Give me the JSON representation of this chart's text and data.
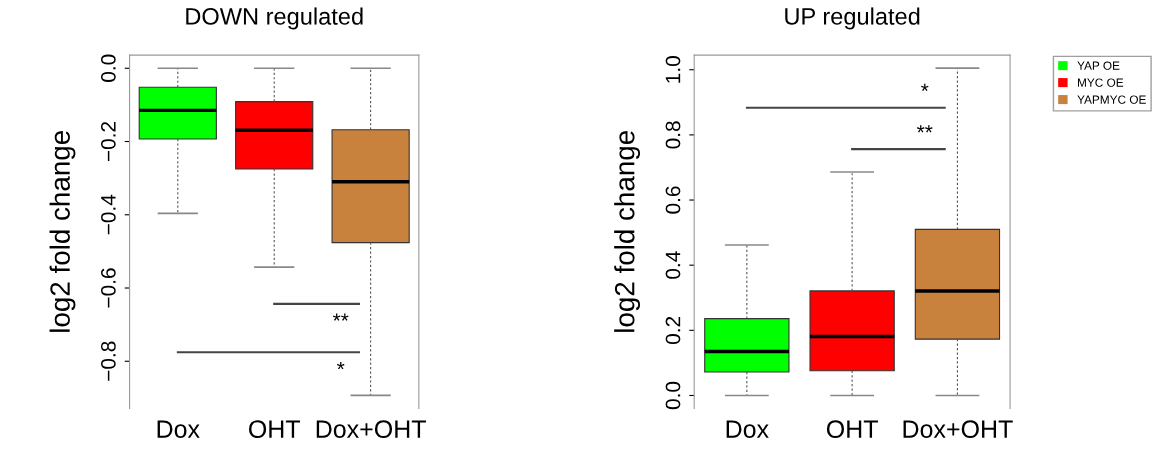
{
  "chart_data": [
    {
      "type": "box",
      "title": "DOWN regulated",
      "ylabel": "log2 fold change",
      "categories": [
        "Dox",
        "OHT",
        "Dox+OHT"
      ],
      "ylim": [
        -0.929,
        0.036
      ],
      "yticks": [
        {
          "value": 0,
          "label": "0.0"
        },
        {
          "value": -0.2,
          "label": "−0.2"
        },
        {
          "value": -0.4,
          "label": "−0.4"
        },
        {
          "value": -0.6,
          "label": "−0.6"
        },
        {
          "value": -0.8,
          "label": "−0.8"
        }
      ],
      "series": [
        {
          "color": "#00ff00",
          "boxes": [
            {
              "low": -0.396,
              "q1": -0.193,
              "median": -0.115,
              "q3": -0.052,
              "high": 0.0
            },
            null,
            null
          ]
        },
        {
          "color": "#ff0000",
          "boxes": [
            null,
            {
              "low": -0.543,
              "q1": -0.275,
              "median": -0.169,
              "q3": -0.091,
              "high": 0.0
            },
            null
          ]
        },
        {
          "color": "#c8823e",
          "boxes": [
            null,
            null,
            {
              "low": -0.893,
              "q1": -0.476,
              "median": -0.31,
              "q3": -0.168,
              "high": 0.0
            }
          ]
        }
      ],
      "annotations": [
        "**",
        "*"
      ]
    },
    {
      "type": "box",
      "title": "UP regulated",
      "ylabel": "log2 fold change",
      "categories": [
        "Dox",
        "OHT",
        "Dox+OHT"
      ],
      "ylim": [
        -0.04,
        1.045
      ],
      "yticks": [
        {
          "value": 0,
          "label": "0.0"
        },
        {
          "value": 0.2,
          "label": "0.2"
        },
        {
          "value": 0.4,
          "label": "0.4"
        },
        {
          "value": 0.6,
          "label": "0.6"
        },
        {
          "value": 0.8,
          "label": "0.8"
        },
        {
          "value": 1.0,
          "label": "1.0"
        }
      ],
      "legend": "right",
      "series": [
        {
          "name": "YAP OE",
          "color": "#00ff00",
          "boxes": [
            {
              "low": 0.0,
              "q1": 0.072,
              "median": 0.135,
              "q3": 0.236,
              "high": 0.462
            },
            null,
            null
          ]
        },
        {
          "name": "MYC OE",
          "color": "#ff0000",
          "boxes": [
            null,
            {
              "low": 0.0,
              "q1": 0.076,
              "median": 0.181,
              "q3": 0.321,
              "high": 0.686
            },
            null
          ]
        },
        {
          "name": "YAPMYC OE",
          "color": "#c8823e",
          "boxes": [
            null,
            null,
            {
              "low": 0.0,
              "q1": 0.173,
              "median": 0.321,
              "q3": 0.51,
              "high": 1.005
            }
          ]
        }
      ],
      "annotations": [
        "*",
        "**"
      ]
    }
  ]
}
